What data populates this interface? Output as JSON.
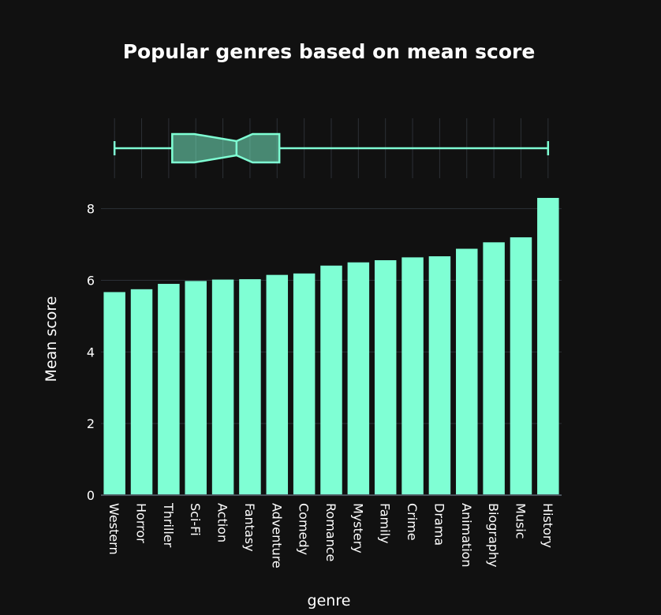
{
  "chart_data": {
    "type": "bar",
    "title": "Popular genres based on mean score",
    "xlabel": "genre",
    "ylabel": "Mean score",
    "categories": [
      "Western",
      "Horror",
      "Thriller",
      "Sci-Fi",
      "Action",
      "Fantasy",
      "Adventure",
      "Comedy",
      "Romance",
      "Mystery",
      "Family",
      "Crime",
      "Drama",
      "Animation",
      "Biography",
      "Music",
      "History"
    ],
    "values": [
      5.67,
      5.75,
      5.9,
      5.98,
      6.02,
      6.03,
      6.15,
      6.19,
      6.41,
      6.5,
      6.56,
      6.64,
      6.67,
      6.88,
      7.06,
      7.2,
      8.3
    ],
    "ylim": [
      0,
      8.3
    ],
    "yticks": [
      0,
      2,
      4,
      6,
      8
    ],
    "grid": true,
    "marginal_boxplot": {
      "orientation": "horizontal",
      "notched": true,
      "min": 5.67,
      "q1": 6.02,
      "median": 6.41,
      "q3": 6.67,
      "max": 8.3
    },
    "colors": {
      "bar": "#7fffd4",
      "background": "#111111",
      "grid": "#2c3036",
      "text": "#ffffff"
    }
  }
}
